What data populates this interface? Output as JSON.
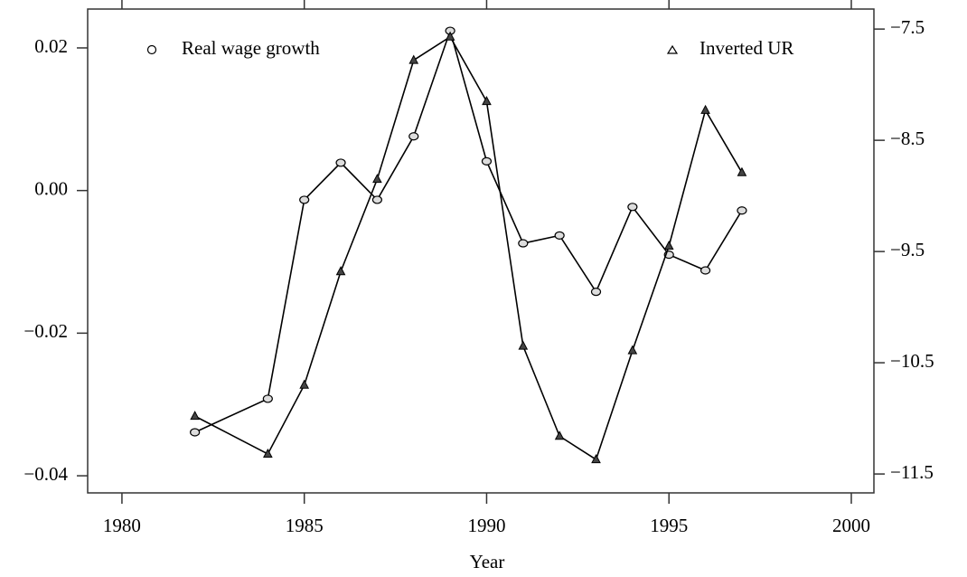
{
  "chart_data": {
    "type": "line",
    "xlabel": "Year",
    "x": [
      1982,
      1984,
      1985,
      1986,
      1987,
      1988,
      1989,
      1990,
      1991,
      1992,
      1993,
      1994,
      1995,
      1996,
      1997
    ],
    "series": [
      {
        "name": "Real wage growth",
        "marker": "circle",
        "color": "#000000",
        "values": [
          -0.0339,
          -0.0292,
          -0.0013,
          0.0039,
          -0.0013,
          0.0076,
          0.0224,
          0.0041,
          -0.0074,
          -0.0063,
          -0.0142,
          -0.0023,
          -0.009,
          -0.0112,
          -0.0028
        ]
      },
      {
        "name": "Inverted UR",
        "marker": "triangle",
        "color": "#000000",
        "axis": "y2",
        "values": [
          -10.98,
          -11.32,
          -10.7,
          -9.68,
          -8.85,
          -7.78,
          -7.57,
          -8.15,
          -10.35,
          -11.16,
          -11.37,
          -10.39,
          -9.45,
          -8.23,
          -8.79
        ]
      }
    ],
    "xlim": [
      1979.06,
      2000.62
    ],
    "xticks": [
      1980,
      1985,
      1990,
      1995,
      2000
    ],
    "ylim": [
      -0.0424,
      0.02545
    ],
    "yticks": [
      {
        "value": 0.02,
        "label": "0.02"
      },
      {
        "value": 0,
        "label": "0.00"
      },
      {
        "value": -0.02,
        "label": "−0.02"
      },
      {
        "value": -0.04,
        "label": "−0.04"
      }
    ],
    "y2lim": [
      -11.67,
      -7.32
    ],
    "y2ticks": [
      {
        "value": -7.5,
        "label": "−7.5"
      },
      {
        "value": -8.5,
        "label": "−8.5"
      },
      {
        "value": -9.5,
        "label": "−9.5"
      },
      {
        "value": -10.5,
        "label": "−10.5"
      },
      {
        "value": -11.5,
        "label": "−11.5"
      }
    ]
  }
}
